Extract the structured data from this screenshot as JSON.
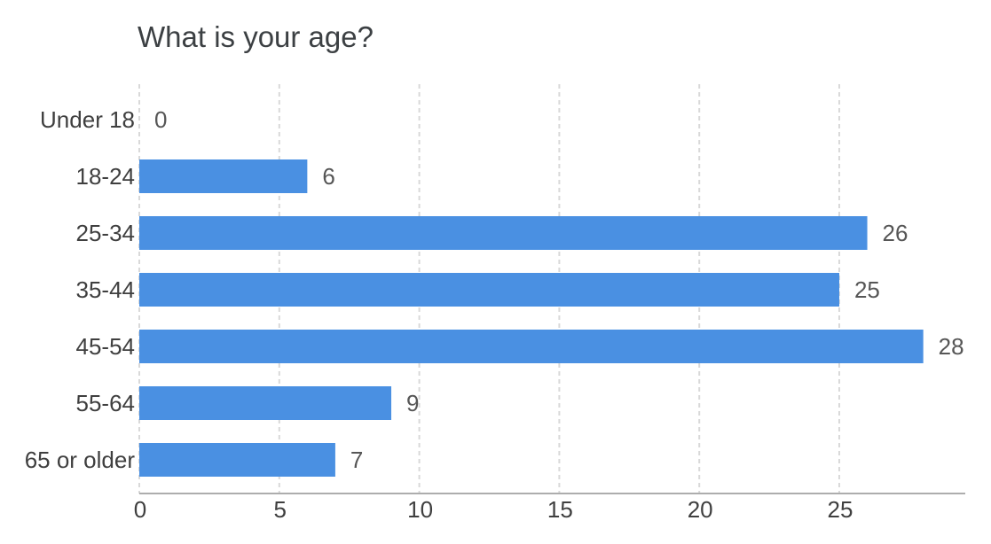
{
  "page": {
    "background": "#ffffff"
  },
  "chart_data": {
    "type": "bar",
    "orientation": "horizontal",
    "title": "What is your age?",
    "categories": [
      "Under 18",
      "18-24",
      "25-34",
      "35-44",
      "45-54",
      "55-64",
      "65 or older"
    ],
    "values": [
      0,
      6,
      26,
      25,
      28,
      9,
      7
    ],
    "xticks": [
      0,
      5,
      10,
      15,
      20,
      25
    ],
    "xlim": [
      0,
      29.5
    ],
    "grid": "vertical-dashed",
    "legend": "none",
    "data_labels": "outside-end",
    "colors": {
      "bar": "#4a90e2",
      "gridline": "#d9d9d9",
      "axis_line": "#adadad",
      "title_text": "#3c4043",
      "category_text": "#3f3f3f",
      "value_text": "#565656",
      "tick_text": "#3f3f3f"
    }
  }
}
